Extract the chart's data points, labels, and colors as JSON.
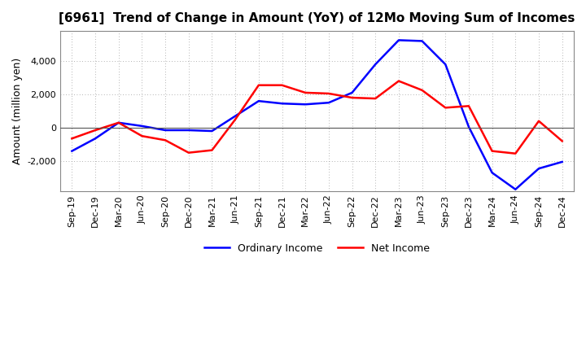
{
  "title": "[6961]  Trend of Change in Amount (YoY) of 12Mo Moving Sum of Incomes",
  "ylabel": "Amount (million yen)",
  "x_labels": [
    "Sep-19",
    "Dec-19",
    "Mar-20",
    "Jun-20",
    "Sep-20",
    "Dec-20",
    "Mar-21",
    "Jun-21",
    "Sep-21",
    "Dec-21",
    "Mar-22",
    "Jun-22",
    "Sep-22",
    "Dec-22",
    "Mar-23",
    "Jun-23",
    "Sep-23",
    "Dec-23",
    "Mar-24",
    "Jun-24",
    "Sep-24",
    "Dec-24"
  ],
  "ordinary_income": [
    -1400,
    -650,
    300,
    100,
    -150,
    -150,
    -200,
    700,
    1600,
    1450,
    1400,
    1500,
    2100,
    3800,
    5250,
    5200,
    3800,
    50,
    -2700,
    -3700,
    -2450,
    -2050
  ],
  "net_income": [
    -650,
    -150,
    300,
    -500,
    -750,
    -1500,
    -1350,
    500,
    2550,
    2550,
    2100,
    2050,
    1800,
    1750,
    2800,
    2250,
    1200,
    1300,
    -1400,
    -1550,
    400,
    -800
  ],
  "ordinary_color": "#0000FF",
  "net_color": "#FF0000",
  "ylim": [
    -3800,
    5800
  ],
  "yticks": [
    -2000,
    0,
    2000,
    4000
  ],
  "background_color": "#FFFFFF",
  "grid_color": "#999999",
  "legend_ordinary": "Ordinary Income",
  "legend_net": "Net Income",
  "linewidth": 1.8,
  "title_fontsize": 11,
  "ylabel_fontsize": 9
}
